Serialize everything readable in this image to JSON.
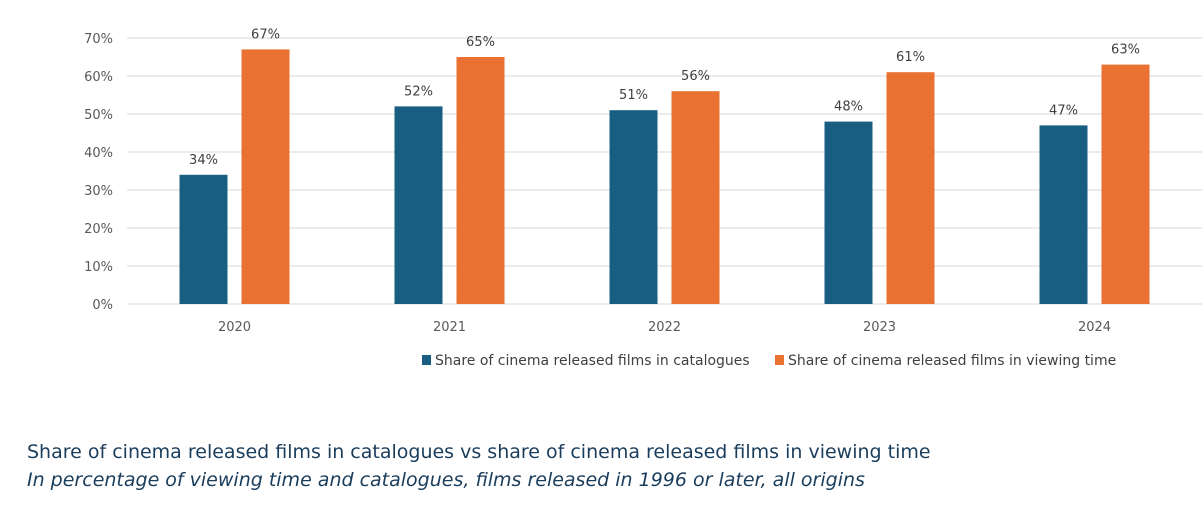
{
  "chart_data": {
    "type": "bar",
    "categories": [
      "2020",
      "2021",
      "2022",
      "2023",
      "2024"
    ],
    "series": [
      {
        "name": "Share of cinema released films in catalogues",
        "values": [
          34,
          52,
          51,
          48,
          47
        ],
        "labels": [
          "34%",
          "52%",
          "51%",
          "48%",
          "47%"
        ],
        "color": "#175e80"
      },
      {
        "name": "Share of cinema released films in viewing time",
        "values": [
          67,
          65,
          56,
          61,
          63
        ],
        "labels": [
          "67%",
          "65%",
          "56%",
          "61%",
          "63%"
        ],
        "color": "#e97132"
      }
    ],
    "yticks": [
      0,
      10,
      20,
      30,
      40,
      50,
      60,
      70
    ],
    "ytick_labels": [
      "0%",
      "10%",
      "20%",
      "30%",
      "40%",
      "50%",
      "60%",
      "70%"
    ],
    "ylim": [
      0,
      70
    ],
    "grid": true,
    "legend_position": "bottom",
    "title": "Share of cinema released films in catalogues vs share of cinema released films in viewing time",
    "subtitle": "In percentage of viewing time and catalogues, films released in 1996 or later, all origins",
    "xlabel": "",
    "ylabel": ""
  }
}
